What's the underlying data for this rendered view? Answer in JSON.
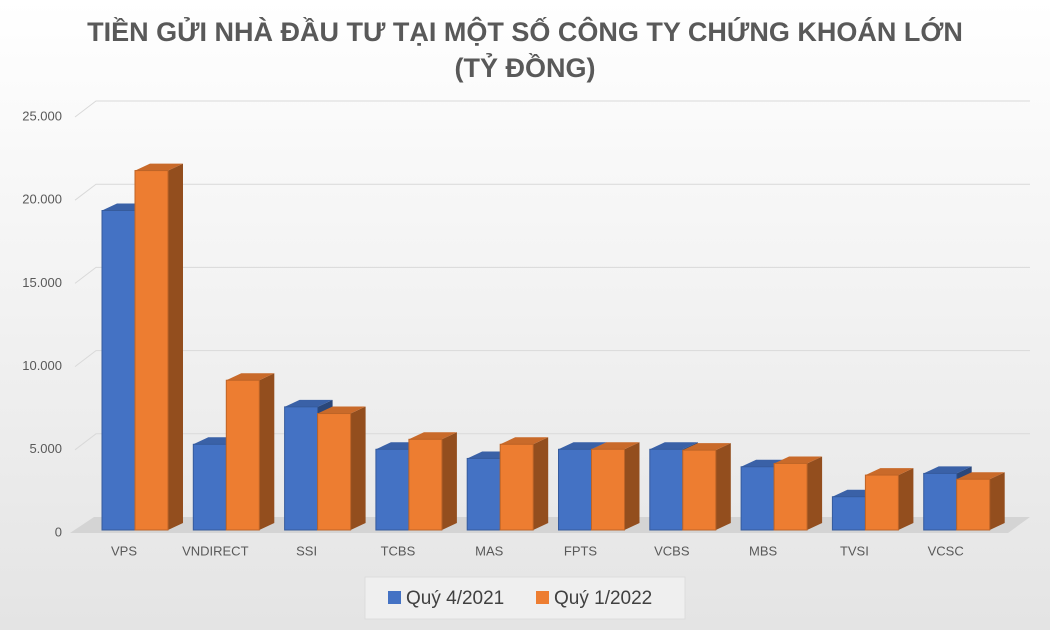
{
  "chart_data": {
    "type": "bar3d",
    "title": "TIỀN GỬI NHÀ ĐẦU TƯ TẠI MỘT SỐ CÔNG TY CHỨNG KHOÁN LỚN",
    "subtitle": "(TỶ ĐỒNG)",
    "categories": [
      "VPS",
      "VNDIRECT",
      "SSI",
      "TCBS",
      "MAS",
      "FPTS",
      "VCBS",
      "MBS",
      "TVSI",
      "VCSC"
    ],
    "series": [
      {
        "name": "Quý 4/2021",
        "color": "#4472c4",
        "values": [
          19200,
          5150,
          7400,
          4850,
          4300,
          4850,
          4850,
          3800,
          2000,
          3400
        ]
      },
      {
        "name": "Quý 1/2022",
        "color": "#ed7d31",
        "values": [
          21600,
          9000,
          7000,
          5450,
          5150,
          4850,
          4800,
          4000,
          3300,
          3050
        ]
      }
    ],
    "ylim": [
      0,
      25000
    ],
    "yticks": [
      0,
      {
        "value": 5000,
        "label": "5.000"
      },
      {
        "value": 10000,
        "label": "10.000"
      },
      {
        "value": 15000,
        "label": "15.000"
      },
      {
        "value": 20000,
        "label": "20.000"
      },
      {
        "value": 25000,
        "label": "25.000"
      }
    ],
    "grid": true,
    "legend": "bottom"
  }
}
